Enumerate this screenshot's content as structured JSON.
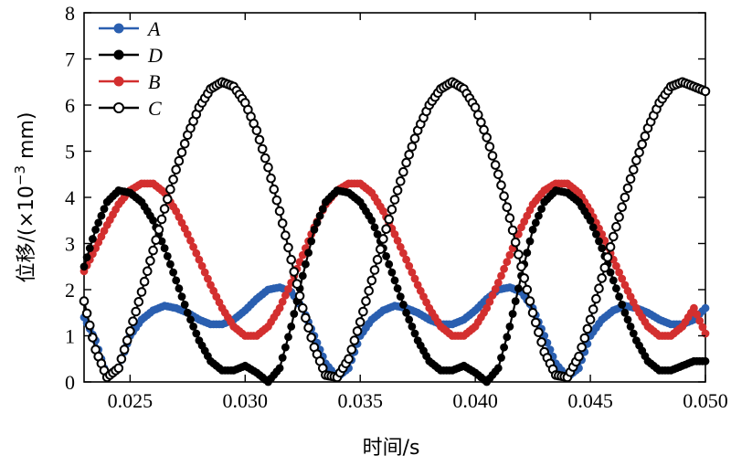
{
  "chart_data": {
    "type": "line",
    "xlabel": "时间/s",
    "ylabel_prefix": "位移/(×10",
    "ylabel_exp": "−3",
    "ylabel_suffix": " mm)",
    "xlim": [
      0.023,
      0.05
    ],
    "ylim": [
      0,
      8
    ],
    "xticks": [
      0.025,
      0.03,
      0.035,
      0.04,
      0.045,
      0.05
    ],
    "xtick_labels": [
      "0.025",
      "0.030",
      "0.035",
      "0.040",
      "0.045",
      "0.050"
    ],
    "yticks": [
      0,
      1,
      2,
      3,
      4,
      5,
      6,
      7,
      8
    ],
    "ytick_labels": [
      "0",
      "1",
      "2",
      "3",
      "4",
      "5",
      "6",
      "7",
      "8"
    ],
    "legend_position": "top-left",
    "series": [
      {
        "name": "A",
        "color": "#2a5fb0",
        "marker": "filled",
        "x": [
          0.023,
          0.0235,
          0.024,
          0.0245,
          0.025,
          0.0255,
          0.026,
          0.0265,
          0.027,
          0.0275,
          0.028,
          0.0285,
          0.029,
          0.0295,
          0.03,
          0.0305,
          0.031,
          0.0315,
          0.032,
          0.0325,
          0.033,
          0.0335,
          0.034,
          0.0345,
          0.035,
          0.0355,
          0.036,
          0.0365,
          0.037,
          0.0375,
          0.038,
          0.0385,
          0.039,
          0.0395,
          0.04,
          0.0405,
          0.041,
          0.0415,
          0.042,
          0.0425,
          0.043,
          0.0435,
          0.044,
          0.0445,
          0.045,
          0.0455,
          0.046,
          0.0465,
          0.047,
          0.0475,
          0.048,
          0.0485,
          0.049,
          0.0495,
          0.05
        ],
        "y": [
          1.4,
          0.9,
          0.1,
          0.3,
          1.0,
          1.35,
          1.55,
          1.65,
          1.6,
          1.5,
          1.35,
          1.25,
          1.25,
          1.35,
          1.55,
          1.8,
          2.0,
          2.05,
          1.95,
          1.6,
          1.0,
          0.4,
          0.1,
          0.3,
          1.0,
          1.35,
          1.55,
          1.65,
          1.6,
          1.5,
          1.35,
          1.25,
          1.25,
          1.35,
          1.55,
          1.8,
          2.0,
          2.05,
          1.95,
          1.6,
          1.0,
          0.4,
          0.1,
          0.3,
          1.0,
          1.35,
          1.55,
          1.65,
          1.6,
          1.5,
          1.35,
          1.25,
          1.25,
          1.35,
          1.6
        ]
      },
      {
        "name": "D",
        "color": "#000000",
        "marker": "filled",
        "x": [
          0.023,
          0.0235,
          0.024,
          0.0245,
          0.025,
          0.0255,
          0.026,
          0.0265,
          0.027,
          0.0275,
          0.028,
          0.0285,
          0.029,
          0.0295,
          0.03,
          0.0305,
          0.031,
          0.0315,
          0.032,
          0.0325,
          0.033,
          0.0335,
          0.034,
          0.0345,
          0.035,
          0.0355,
          0.036,
          0.0365,
          0.037,
          0.0375,
          0.038,
          0.0385,
          0.039,
          0.0395,
          0.04,
          0.0405,
          0.041,
          0.0415,
          0.042,
          0.0425,
          0.043,
          0.0435,
          0.044,
          0.0445,
          0.045,
          0.0455,
          0.046,
          0.0465,
          0.047,
          0.0475,
          0.048,
          0.0485,
          0.049,
          0.0495,
          0.05
        ],
        "y": [
          2.5,
          3.3,
          3.9,
          4.15,
          4.1,
          3.9,
          3.5,
          2.9,
          2.2,
          1.5,
          0.9,
          0.45,
          0.25,
          0.25,
          0.35,
          0.2,
          0.0,
          0.3,
          1.2,
          2.3,
          3.3,
          3.9,
          4.15,
          4.1,
          3.9,
          3.5,
          2.9,
          2.2,
          1.5,
          0.9,
          0.45,
          0.25,
          0.25,
          0.35,
          0.2,
          0.0,
          0.3,
          1.2,
          2.3,
          3.3,
          3.9,
          4.15,
          4.1,
          3.9,
          3.5,
          2.9,
          2.2,
          1.5,
          0.9,
          0.45,
          0.25,
          0.25,
          0.35,
          0.45,
          0.45
        ]
      },
      {
        "name": "B",
        "color": "#d32f2f",
        "marker": "filled",
        "x": [
          0.023,
          0.0235,
          0.024,
          0.0245,
          0.025,
          0.0255,
          0.026,
          0.0265,
          0.027,
          0.0275,
          0.028,
          0.0285,
          0.029,
          0.0295,
          0.03,
          0.0305,
          0.031,
          0.0315,
          0.032,
          0.0325,
          0.033,
          0.0335,
          0.034,
          0.0345,
          0.035,
          0.0355,
          0.036,
          0.0365,
          0.037,
          0.0375,
          0.038,
          0.0385,
          0.039,
          0.0395,
          0.04,
          0.0405,
          0.041,
          0.0415,
          0.042,
          0.0425,
          0.043,
          0.0435,
          0.044,
          0.0445,
          0.045,
          0.0455,
          0.046,
          0.0465,
          0.047,
          0.0475,
          0.048,
          0.0485,
          0.049,
          0.0495,
          0.05
        ],
        "y": [
          2.4,
          2.9,
          3.4,
          3.85,
          4.15,
          4.3,
          4.3,
          4.1,
          3.7,
          3.2,
          2.65,
          2.1,
          1.6,
          1.2,
          1.0,
          1.0,
          1.2,
          1.6,
          2.15,
          2.75,
          3.35,
          3.85,
          4.15,
          4.3,
          4.3,
          4.1,
          3.7,
          3.2,
          2.65,
          2.1,
          1.6,
          1.2,
          1.0,
          1.0,
          1.2,
          1.6,
          2.15,
          2.75,
          3.35,
          3.85,
          4.15,
          4.3,
          4.3,
          4.1,
          3.7,
          3.2,
          2.65,
          2.1,
          1.6,
          1.2,
          1.0,
          1.0,
          1.2,
          1.6,
          1.05
        ]
      },
      {
        "name": "C",
        "color": "#000000",
        "marker": "open",
        "x": [
          0.023,
          0.0235,
          0.024,
          0.0245,
          0.025,
          0.0255,
          0.026,
          0.0265,
          0.027,
          0.0275,
          0.028,
          0.0285,
          0.029,
          0.0295,
          0.03,
          0.0305,
          0.031,
          0.0315,
          0.032,
          0.0325,
          0.033,
          0.0335,
          0.034,
          0.0345,
          0.035,
          0.0355,
          0.036,
          0.0365,
          0.037,
          0.0375,
          0.038,
          0.0385,
          0.039,
          0.0395,
          0.04,
          0.0405,
          0.041,
          0.0415,
          0.042,
          0.0425,
          0.043,
          0.0435,
          0.044,
          0.0445,
          0.045,
          0.0455,
          0.046,
          0.0465,
          0.047,
          0.0475,
          0.048,
          0.0485,
          0.049,
          0.0495,
          0.05
        ],
        "y": [
          1.75,
          0.7,
          0.1,
          0.3,
          1.1,
          1.95,
          2.85,
          3.75,
          4.6,
          5.35,
          5.95,
          6.35,
          6.5,
          6.4,
          6.05,
          5.45,
          4.65,
          3.7,
          2.65,
          1.6,
          0.75,
          0.15,
          0.1,
          0.5,
          1.3,
          2.2,
          3.1,
          3.95,
          4.75,
          5.45,
          6.0,
          6.35,
          6.5,
          6.35,
          5.95,
          5.3,
          4.5,
          3.55,
          2.5,
          1.5,
          0.65,
          0.15,
          0.1,
          0.55,
          1.35,
          2.25,
          3.15,
          4.0,
          4.8,
          5.5,
          6.05,
          6.4,
          6.5,
          6.4,
          6.3
        ]
      }
    ]
  }
}
